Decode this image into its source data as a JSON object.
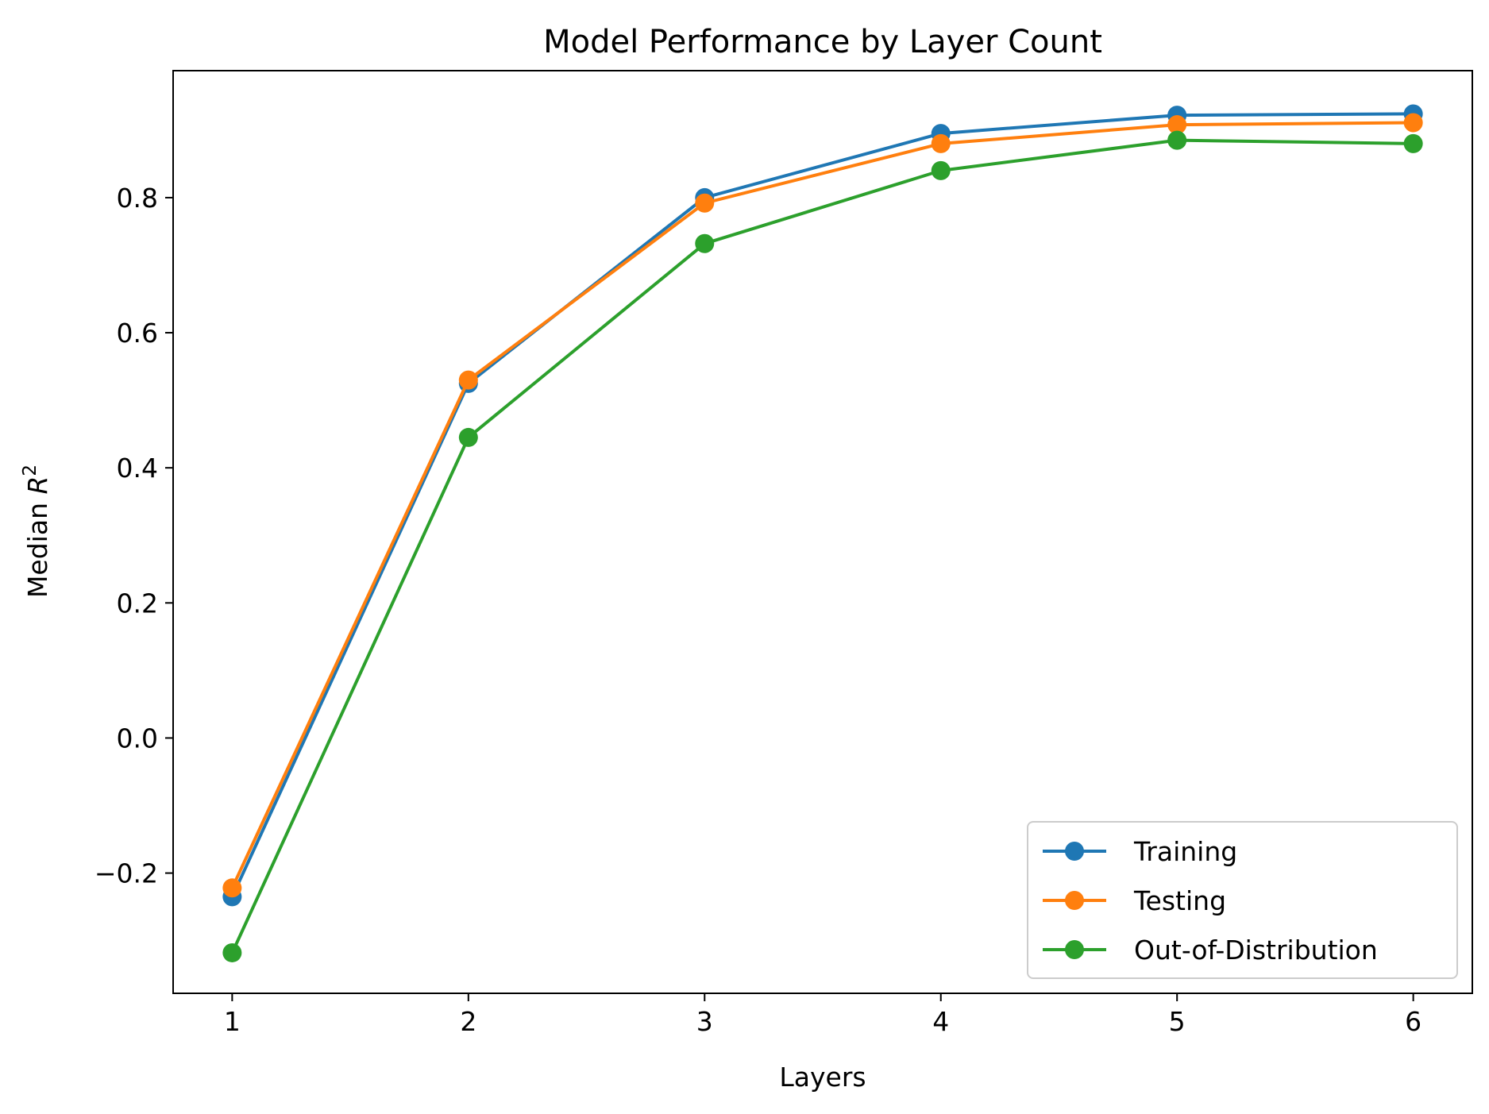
{
  "chart_data": {
    "type": "line",
    "title": "Model Performance by Layer Count",
    "xlabel": "Layers",
    "ylabel_prefix": "Median ",
    "ylabel_var": "R",
    "ylabel_sup": "2",
    "x": [
      1,
      2,
      3,
      4,
      5,
      6
    ],
    "xlim": [
      0.75,
      6.25
    ],
    "ylim": [
      -0.378,
      0.988
    ],
    "xticks": [
      1,
      2,
      3,
      4,
      5,
      6
    ],
    "xtick_labels": [
      "1",
      "2",
      "3",
      "4",
      "5",
      "6"
    ],
    "yticks": [
      -0.2,
      0.0,
      0.2,
      0.4,
      0.6,
      0.8
    ],
    "ytick_labels": [
      "−0.2",
      "0.0",
      "0.2",
      "0.4",
      "0.6",
      "0.8"
    ],
    "grid": false,
    "legend_position": "lower-right",
    "series": [
      {
        "name": "Training",
        "color": "#1f77b4",
        "values": [
          -0.235,
          0.525,
          0.8,
          0.895,
          0.922,
          0.924
        ]
      },
      {
        "name": "Testing",
        "color": "#ff7f0e",
        "values": [
          -0.222,
          0.53,
          0.792,
          0.88,
          0.908,
          0.911
        ]
      },
      {
        "name": "Out-of-Distribution",
        "color": "#2ca02c",
        "values": [
          -0.318,
          0.445,
          0.732,
          0.84,
          0.885,
          0.88
        ]
      }
    ]
  }
}
